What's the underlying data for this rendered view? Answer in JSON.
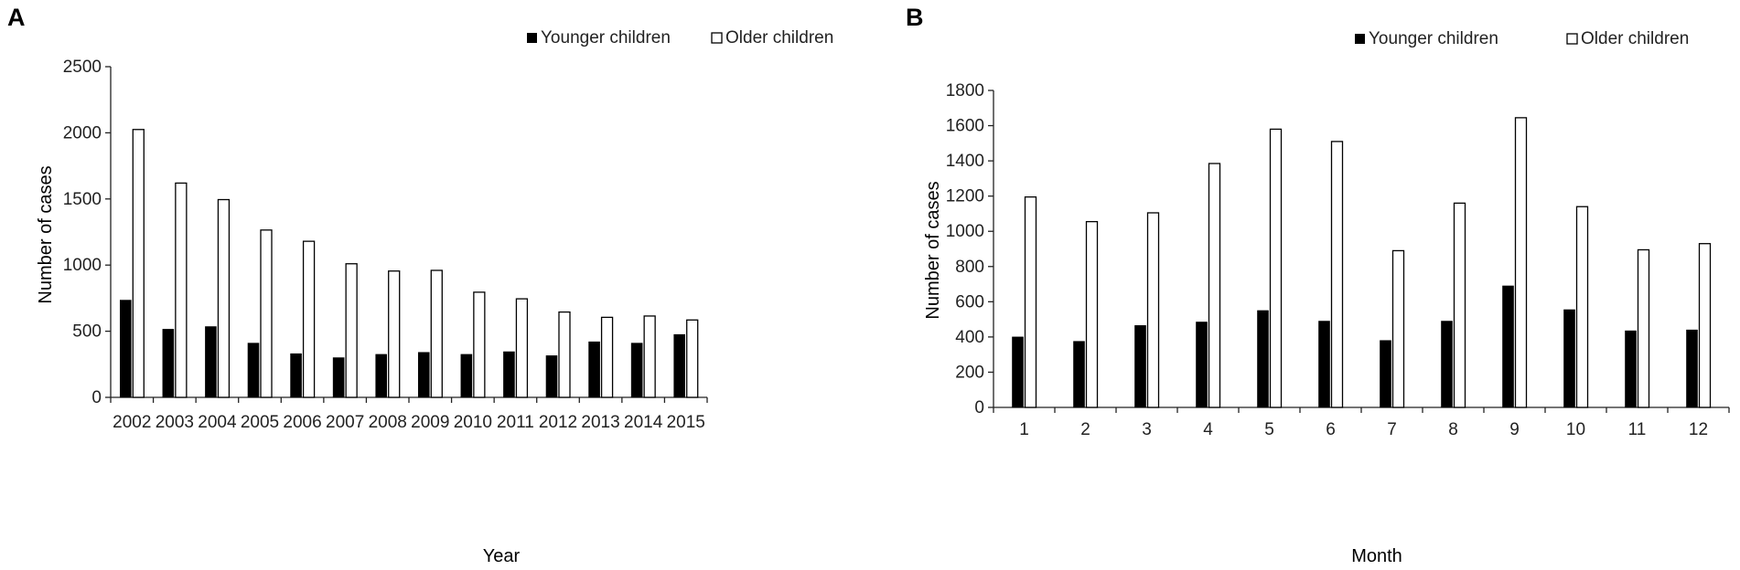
{
  "chart_data": [
    {
      "panel": "A",
      "type": "bar",
      "title": "",
      "xlabel": "Year",
      "ylabel": "Number  of cases",
      "ylim": [
        0,
        2500
      ],
      "yticks": [
        0,
        500,
        1000,
        1500,
        2000,
        2500
      ],
      "categories": [
        "2002",
        "2003",
        "2004",
        "2005",
        "2006",
        "2007",
        "2008",
        "2009",
        "2010",
        "2011",
        "2012",
        "2013",
        "2014",
        "2015"
      ],
      "series": [
        {
          "name": "Younger children",
          "color": "#000000",
          "values": [
            735,
            515,
            535,
            410,
            330,
            300,
            325,
            340,
            325,
            345,
            315,
            420,
            410,
            475
          ]
        },
        {
          "name": "Older children",
          "color": "#ffffff",
          "values": [
            2025,
            1620,
            1495,
            1265,
            1180,
            1010,
            955,
            960,
            795,
            745,
            645,
            605,
            615,
            585
          ]
        }
      ],
      "legend": "top-right"
    },
    {
      "panel": "B",
      "type": "bar",
      "title": "",
      "xlabel": "Month",
      "ylabel": "Number  of cases",
      "ylim": [
        0,
        1800
      ],
      "yticks": [
        0,
        200,
        400,
        600,
        800,
        1000,
        1200,
        1400,
        1600,
        1800
      ],
      "categories": [
        "1",
        "2",
        "3",
        "4",
        "5",
        "6",
        "7",
        "8",
        "9",
        "10",
        "11",
        "12"
      ],
      "series": [
        {
          "name": "Younger children",
          "color": "#000000",
          "values": [
            400,
            375,
            465,
            485,
            550,
            490,
            380,
            490,
            690,
            555,
            435,
            440
          ]
        },
        {
          "name": "Older children",
          "color": "#ffffff",
          "values": [
            1195,
            1055,
            1105,
            1385,
            1580,
            1510,
            890,
            1160,
            1645,
            1140,
            895,
            930
          ]
        }
      ],
      "legend": "top-right"
    }
  ]
}
